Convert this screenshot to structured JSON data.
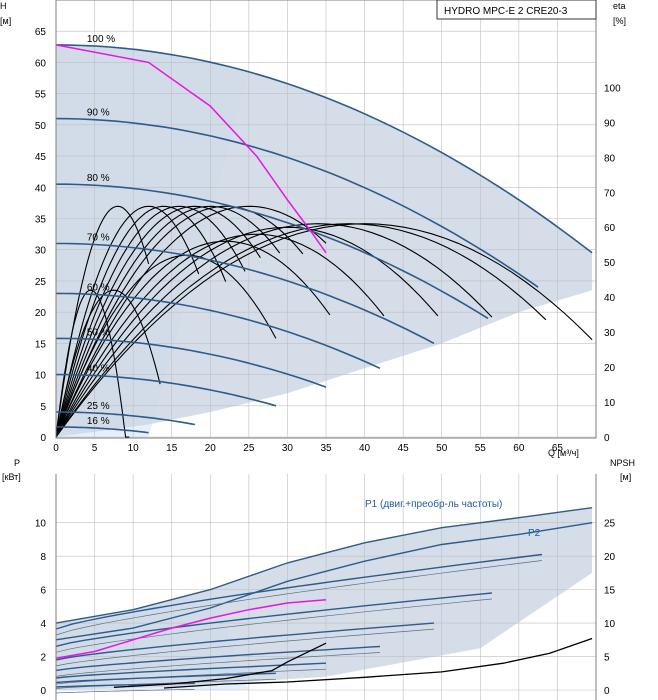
{
  "title": "HYDRO MPC-E 2 CRE20-3",
  "chart_data": [
    {
      "type": "line",
      "name": "head_efficiency",
      "title": "HYDRO MPC-E 2 CRE20-3",
      "xlabel": "Q [м³/ч]",
      "ylabel_left": "H",
      "ylabel_left_unit": "[м]",
      "ylabel_right": "eta",
      "ylabel_right_unit": "[%]",
      "xlim": [
        0,
        70
      ],
      "ylim_left": [
        0,
        70
      ],
      "ylim_right": [
        0,
        125
      ],
      "x_ticks": [
        0,
        5,
        10,
        15,
        20,
        25,
        30,
        35,
        40,
        45,
        50,
        55,
        60,
        65
      ],
      "y_ticks_left": [
        0,
        5,
        10,
        15,
        20,
        25,
        30,
        35,
        40,
        45,
        50,
        55,
        60,
        65
      ],
      "y_ticks_right": [
        0,
        10,
        20,
        30,
        40,
        50,
        60,
        70,
        80,
        90,
        100
      ],
      "grid": true,
      "speed_curves": [
        {
          "label": "100 %",
          "h0": 62.8,
          "qmax": 69.5,
          "hend": 29.5
        },
        {
          "label": "90 %",
          "h0": 51,
          "qmax": 62.5,
          "hend": 24
        },
        {
          "label": "80 %",
          "h0": 40.5,
          "qmax": 56,
          "hend": 19
        },
        {
          "label": "70 %",
          "h0": 31,
          "qmax": 49,
          "hend": 15
        },
        {
          "label": "60 %",
          "h0": 23,
          "qmax": 42,
          "hend": 11
        },
        {
          "label": "50 %",
          "h0": 15.8,
          "qmax": 35,
          "hend": 8
        },
        {
          "label": "40 %",
          "h0": 10,
          "qmax": 28.5,
          "hend": 5
        },
        {
          "label": "25 %",
          "h0": 4,
          "qmax": 18,
          "hend": 2
        },
        {
          "label": "16 %",
          "h0": 1.6,
          "qmax": 12,
          "hend": 0.7
        }
      ],
      "duty_curve": {
        "color": "#e815e8",
        "x": [
          0,
          12,
          20,
          26,
          30,
          33,
          35
        ],
        "y": [
          62.8,
          60,
          53,
          45,
          38,
          33,
          29.5
        ]
      },
      "efficiency_curves": [
        {
          "qpk": 4.5,
          "epk": 42,
          "qmax": 9.5
        },
        {
          "qpk": 7.5,
          "epk": 42,
          "qmax": 13.5
        },
        {
          "qpk": 8,
          "epk": 66,
          "qmax": 12
        },
        {
          "qpk": 12,
          "epk": 66,
          "qmax": 18.5
        },
        {
          "qpk": 14,
          "epk": 66,
          "qmax": 22
        },
        {
          "qpk": 16,
          "epk": 66,
          "qmax": 24.5
        },
        {
          "qpk": 18,
          "epk": 66,
          "qmax": 26.5
        },
        {
          "qpk": 20,
          "epk": 66,
          "qmax": 29
        },
        {
          "qpk": 22,
          "epk": 66,
          "qmax": 32
        },
        {
          "qpk": 25,
          "epk": 66,
          "qmax": 35
        },
        {
          "qpk": 17,
          "epk": 52,
          "qmax": 28.5
        },
        {
          "qpk": 22,
          "epk": 56,
          "qmax": 35.5
        },
        {
          "qpk": 26,
          "epk": 58,
          "qmax": 42.5
        },
        {
          "qpk": 30,
          "epk": 60,
          "qmax": 49.5
        },
        {
          "qpk": 34,
          "epk": 61,
          "qmax": 56.5
        },
        {
          "qpk": 38,
          "epk": 61,
          "qmax": 63.5
        },
        {
          "qpk": 40,
          "epk": 61,
          "qmax": 69.5
        }
      ]
    },
    {
      "type": "line",
      "name": "power_npsh",
      "xlabel": "Q [м³/ч]",
      "ylabel_left": "P",
      "ylabel_left_unit": "[кВт]",
      "ylabel_right": "NPSH",
      "ylabel_right_unit": "[м]",
      "xlim": [
        0,
        70
      ],
      "ylim_left": [
        0,
        12
      ],
      "ylim_right": [
        0,
        30
      ],
      "y_ticks_left": [
        0,
        2,
        4,
        6,
        8,
        10
      ],
      "y_ticks_right": [
        0,
        5,
        10,
        15,
        20,
        25
      ],
      "grid": true,
      "series_labels": [
        "P1 (двиг.+преобр-ль частоты)",
        "P2"
      ],
      "p1_top": {
        "x": [
          0,
          10,
          20,
          30,
          40,
          50,
          60,
          69.5
        ],
        "y": [
          4.0,
          4.8,
          6.0,
          7.6,
          8.8,
          9.7,
          10.3,
          10.9
        ]
      },
      "p2_top": {
        "x": [
          0,
          10,
          20,
          30,
          40,
          50,
          60,
          69.5
        ],
        "y": [
          3.0,
          3.7,
          4.9,
          6.5,
          7.7,
          8.7,
          9.3,
          10.0
        ]
      },
      "speed_power_ends": [
        {
          "qmax": 63,
          "p": 8.1
        },
        {
          "qmax": 56.5,
          "p": 5.8
        },
        {
          "qmax": 49,
          "p": 4.0
        },
        {
          "qmax": 42,
          "p": 2.6
        },
        {
          "qmax": 35,
          "p": 1.6
        },
        {
          "qmax": 28.5,
          "p": 1.0
        },
        {
          "qmax": 18,
          "p": 0.4
        }
      ],
      "duty_power": {
        "color": "#e815e8",
        "x": [
          0,
          5,
          10,
          15,
          20,
          25,
          30,
          35
        ],
        "y": [
          1.9,
          2.3,
          3.0,
          3.7,
          4.3,
          4.8,
          5.2,
          5.4
        ]
      },
      "npsh_curves": [
        {
          "x": [
            7.5,
            15,
            22,
            28,
            30,
            35
          ],
          "y": [
            0.4,
            0.9,
            1.7,
            2.9,
            4.2,
            7.0
          ]
        },
        {
          "x": [
            14,
            22,
            30,
            40,
            50,
            58,
            64,
            69.5
          ],
          "y": [
            0.3,
            0.9,
            1.2,
            1.9,
            2.7,
            4.0,
            5.5,
            7.7
          ]
        }
      ]
    }
  ]
}
